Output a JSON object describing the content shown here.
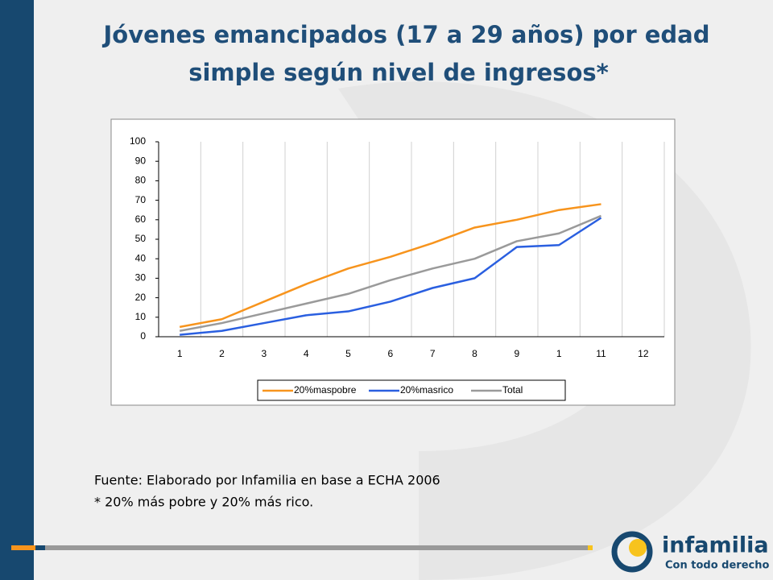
{
  "slide": {
    "title_line1": "Jóvenes emancipados (17 a 29 años) por edad",
    "title_line2": "simple según nivel de ingresos*",
    "source": "Fuente: Elaborado por Infamilia en base a ECHA 2006",
    "note": "* 20% más pobre y 20% más rico.",
    "logo": "infamilia",
    "logo_tagline": "Con todo derecho"
  },
  "chart_data": {
    "type": "line",
    "categories": [
      "1",
      "2",
      "3",
      "4",
      "5",
      "6",
      "7",
      "8",
      "9",
      "1",
      "11",
      "12"
    ],
    "series": [
      {
        "name": "20%maspobre",
        "color": "#f7941d",
        "values": [
          5,
          9,
          18,
          27,
          35,
          41,
          48,
          56,
          60,
          65,
          68,
          null
        ]
      },
      {
        "name": "20%masrico",
        "color": "#2a5fe0",
        "values": [
          1,
          3,
          7,
          11,
          13,
          18,
          25,
          30,
          46,
          47,
          61,
          null
        ]
      },
      {
        "name": "Total",
        "color": "#9a9a9a",
        "values": [
          3,
          7,
          12,
          17,
          22,
          29,
          35,
          40,
          49,
          53,
          62,
          null
        ]
      }
    ],
    "ylim": [
      0,
      100
    ],
    "yticks": [
      0,
      10,
      20,
      30,
      40,
      50,
      60,
      70,
      80,
      90,
      100
    ],
    "legend": "bottom"
  }
}
